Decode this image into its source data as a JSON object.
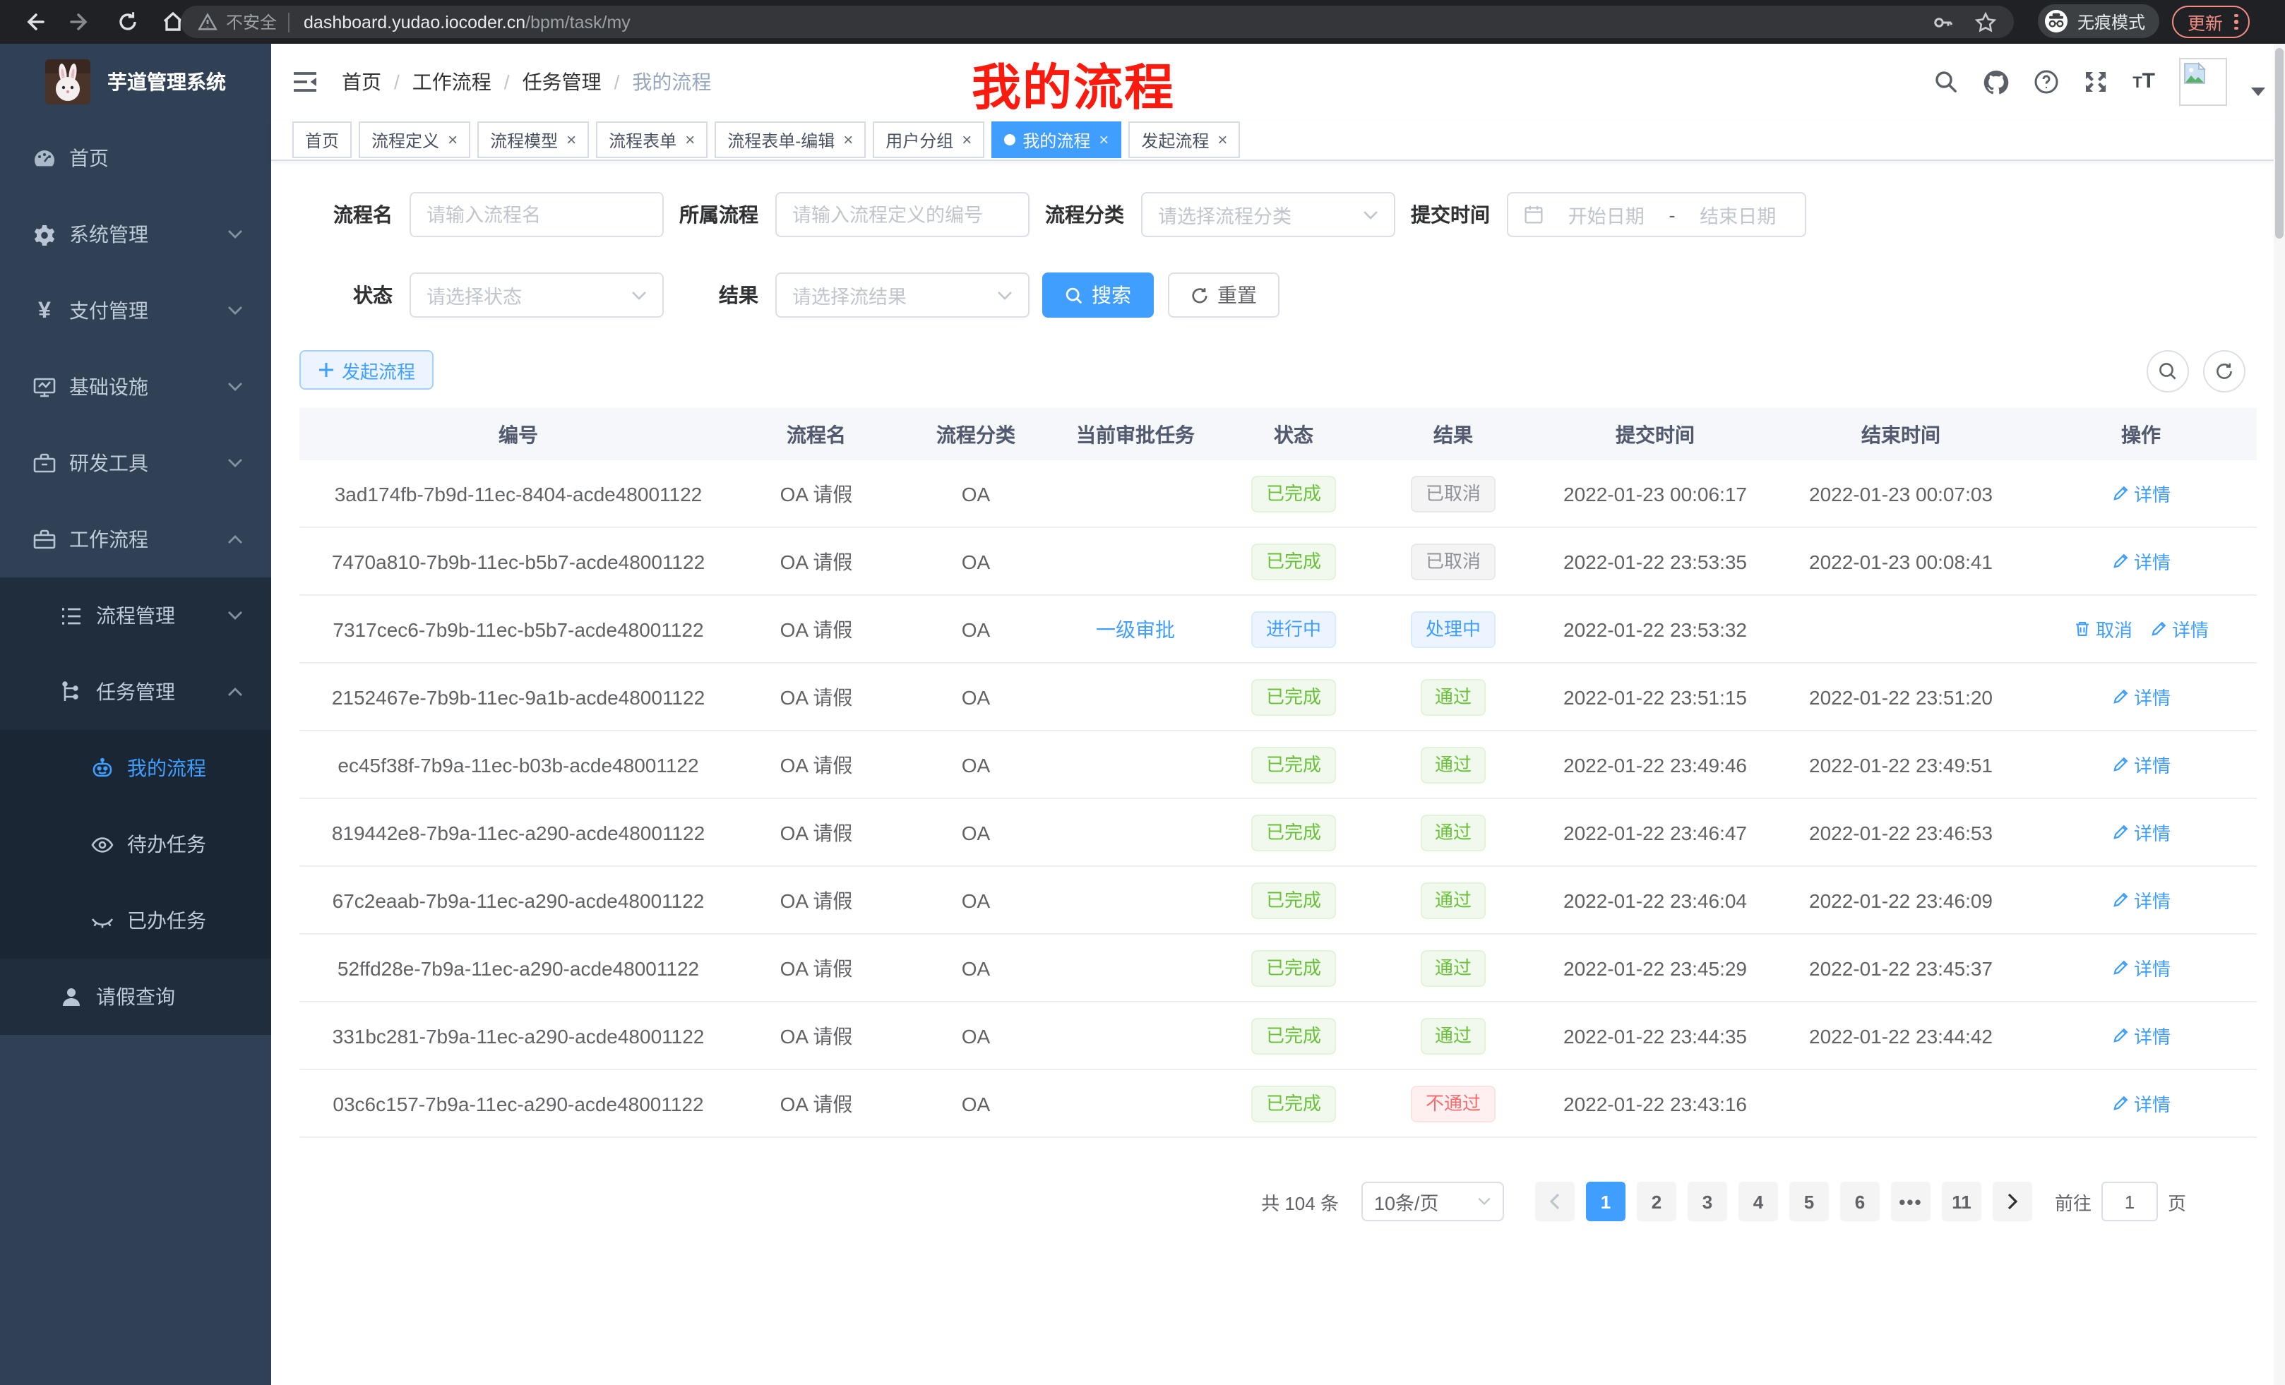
{
  "browser": {
    "security_label": "不安全",
    "url_host": "dashboard.yudao.iocoder.cn",
    "url_path": "/bpm/task/my",
    "incognito_label": "无痕模式",
    "update_label": "更新"
  },
  "sidebar": {
    "app_title": "芋道管理系统",
    "items": [
      {
        "label": "首页",
        "icon": "dashboard-icon",
        "level": 1
      },
      {
        "label": "系统管理",
        "icon": "gear-icon",
        "level": 1,
        "expanded": false
      },
      {
        "label": "支付管理",
        "icon": "yen-icon",
        "level": 1,
        "expanded": false
      },
      {
        "label": "基础设施",
        "icon": "monitor-icon",
        "level": 1,
        "expanded": false
      },
      {
        "label": "研发工具",
        "icon": "toolbox-icon",
        "level": 1,
        "expanded": false
      },
      {
        "label": "工作流程",
        "icon": "briefcase-icon",
        "level": 1,
        "expanded": true
      },
      {
        "label": "流程管理",
        "icon": "list-tree-icon",
        "level": 2,
        "expanded": false
      },
      {
        "label": "任务管理",
        "icon": "flow-tree-icon",
        "level": 2,
        "expanded": true
      },
      {
        "label": "我的流程",
        "icon": "robot-icon",
        "level": 3,
        "active": true
      },
      {
        "label": "待办任务",
        "icon": "eye-icon",
        "level": 3
      },
      {
        "label": "已办任务",
        "icon": "eye-closed-icon",
        "level": 3
      },
      {
        "label": "请假查询",
        "icon": "user-icon",
        "level": 2
      }
    ]
  },
  "header": {
    "breadcrumb": [
      "首页",
      "工作流程",
      "任务管理",
      "我的流程"
    ],
    "annotation": "我的流程",
    "icons": [
      "search-icon",
      "github-icon",
      "help-icon",
      "fullscreen-icon",
      "font-size-icon",
      "avatar",
      "caret-down-icon"
    ]
  },
  "tabs": [
    {
      "label": "首页",
      "closable": false,
      "active": false
    },
    {
      "label": "流程定义",
      "closable": true,
      "active": false
    },
    {
      "label": "流程模型",
      "closable": true,
      "active": false
    },
    {
      "label": "流程表单",
      "closable": true,
      "active": false
    },
    {
      "label": "流程表单-编辑",
      "closable": true,
      "active": false
    },
    {
      "label": "用户分组",
      "closable": true,
      "active": false
    },
    {
      "label": "我的流程",
      "closable": true,
      "active": true
    },
    {
      "label": "发起流程",
      "closable": true,
      "active": false
    }
  ],
  "filters": {
    "fields": [
      {
        "label": "流程名",
        "placeholder": "请输入流程名",
        "type": "input"
      },
      {
        "label": "所属流程",
        "placeholder": "请输入流程定义的编号",
        "type": "input"
      },
      {
        "label": "流程分类",
        "placeholder": "请选择流程分类",
        "type": "select"
      },
      {
        "label": "提交时间",
        "start_placeholder": "开始日期",
        "separator": "-",
        "end_placeholder": "结束日期",
        "type": "daterange"
      },
      {
        "label": "状态",
        "placeholder": "请选择状态",
        "type": "select"
      },
      {
        "label": "结果",
        "placeholder": "请选择流结果",
        "type": "select"
      }
    ],
    "search_label": "搜索",
    "reset_label": "重置"
  },
  "toolbar": {
    "start_process_label": "发起流程"
  },
  "table": {
    "columns": [
      "编号",
      "流程名",
      "流程分类",
      "当前审批任务",
      "状态",
      "结果",
      "提交时间",
      "结束时间",
      "操作"
    ],
    "detail_label": "详情",
    "cancel_label": "取消",
    "rows": [
      {
        "id": "3ad174fb-7b9d-11ec-8404-acde48001122",
        "name": "OA 请假",
        "category": "OA",
        "task": "",
        "status": "已完成",
        "status_type": "success",
        "result": "已取消",
        "result_type": "info",
        "submit": "2022-01-23 00:06:17",
        "end": "2022-01-23 00:07:03",
        "actions": [
          "detail"
        ]
      },
      {
        "id": "7470a810-7b9b-11ec-b5b7-acde48001122",
        "name": "OA 请假",
        "category": "OA",
        "task": "",
        "status": "已完成",
        "status_type": "success",
        "result": "已取消",
        "result_type": "info",
        "submit": "2022-01-22 23:53:35",
        "end": "2022-01-23 00:08:41",
        "actions": [
          "detail"
        ]
      },
      {
        "id": "7317cec6-7b9b-11ec-b5b7-acde48001122",
        "name": "OA 请假",
        "category": "OA",
        "task": "一级审批",
        "status": "进行中",
        "status_type": "primary",
        "result": "处理中",
        "result_type": "primary",
        "submit": "2022-01-22 23:53:32",
        "end": "",
        "actions": [
          "cancel",
          "detail"
        ]
      },
      {
        "id": "2152467e-7b9b-11ec-9a1b-acde48001122",
        "name": "OA 请假",
        "category": "OA",
        "task": "",
        "status": "已完成",
        "status_type": "success",
        "result": "通过",
        "result_type": "success",
        "submit": "2022-01-22 23:51:15",
        "end": "2022-01-22 23:51:20",
        "actions": [
          "detail"
        ]
      },
      {
        "id": "ec45f38f-7b9a-11ec-b03b-acde48001122",
        "name": "OA 请假",
        "category": "OA",
        "task": "",
        "status": "已完成",
        "status_type": "success",
        "result": "通过",
        "result_type": "success",
        "submit": "2022-01-22 23:49:46",
        "end": "2022-01-22 23:49:51",
        "actions": [
          "detail"
        ]
      },
      {
        "id": "819442e8-7b9a-11ec-a290-acde48001122",
        "name": "OA 请假",
        "category": "OA",
        "task": "",
        "status": "已完成",
        "status_type": "success",
        "result": "通过",
        "result_type": "success",
        "submit": "2022-01-22 23:46:47",
        "end": "2022-01-22 23:46:53",
        "actions": [
          "detail"
        ]
      },
      {
        "id": "67c2eaab-7b9a-11ec-a290-acde48001122",
        "name": "OA 请假",
        "category": "OA",
        "task": "",
        "status": "已完成",
        "status_type": "success",
        "result": "通过",
        "result_type": "success",
        "submit": "2022-01-22 23:46:04",
        "end": "2022-01-22 23:46:09",
        "actions": [
          "detail"
        ]
      },
      {
        "id": "52ffd28e-7b9a-11ec-a290-acde48001122",
        "name": "OA 请假",
        "category": "OA",
        "task": "",
        "status": "已完成",
        "status_type": "success",
        "result": "通过",
        "result_type": "success",
        "submit": "2022-01-22 23:45:29",
        "end": "2022-01-22 23:45:37",
        "actions": [
          "detail"
        ]
      },
      {
        "id": "331bc281-7b9a-11ec-a290-acde48001122",
        "name": "OA 请假",
        "category": "OA",
        "task": "",
        "status": "已完成",
        "status_type": "success",
        "result": "通过",
        "result_type": "success",
        "submit": "2022-01-22 23:44:35",
        "end": "2022-01-22 23:44:42",
        "actions": [
          "detail"
        ]
      },
      {
        "id": "03c6c157-7b9a-11ec-a290-acde48001122",
        "name": "OA 请假",
        "category": "OA",
        "task": "",
        "status": "已完成",
        "status_type": "success",
        "result": "不通过",
        "result_type": "danger",
        "submit": "2022-01-22 23:43:16",
        "end": "",
        "actions": [
          "detail"
        ]
      }
    ]
  },
  "pagination": {
    "total_label": "共 104 条",
    "page_size": "10条/页",
    "pages": [
      "1",
      "2",
      "3",
      "4",
      "5",
      "6",
      "•••",
      "11"
    ],
    "active_page": "1",
    "goto_label": "前往",
    "goto_value": "1",
    "page_unit": "页"
  },
  "colors": {
    "accent": "#409eff",
    "sidebar_bg": "#304156",
    "submenu_bg": "#1f2d3d",
    "success": "#67c23a",
    "danger": "#f56c6c",
    "info": "#909399",
    "chrome_bar": "#202124",
    "update_red": "#f28b82",
    "annotation_red": "#fb1b0e"
  }
}
